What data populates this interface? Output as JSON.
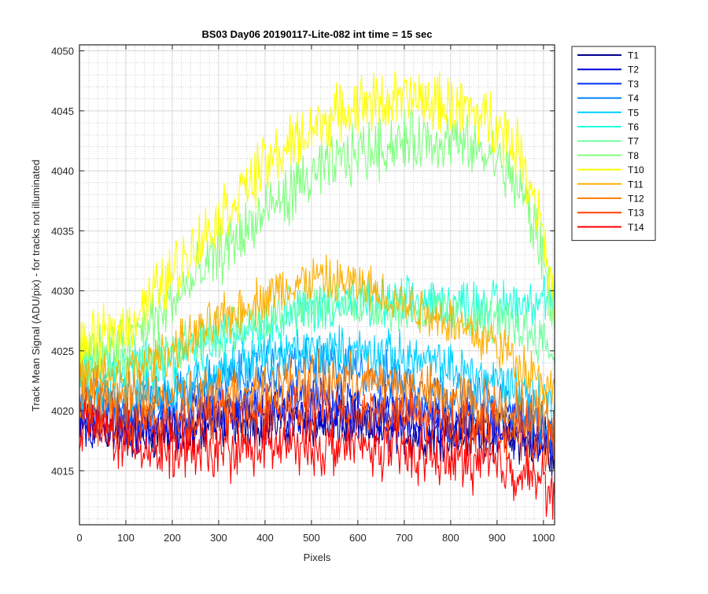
{
  "chart_data": {
    "type": "line",
    "title": "BS03 Day06 20190117-Lite-082 int time = 15 sec",
    "xlabel": "Pixels",
    "ylabel": "Track Mean Signal (ADU/pix) - for tracks not illuminated",
    "xlim": [
      0,
      1024
    ],
    "ylim": [
      4010.5,
      4050.5
    ],
    "x_ticks": [
      0,
      100,
      200,
      300,
      400,
      500,
      600,
      700,
      800,
      900,
      1000
    ],
    "y_ticks": [
      4015,
      4020,
      4025,
      4030,
      4035,
      4040,
      4045,
      4050
    ],
    "grid": "on",
    "minor_grid": "on",
    "legend_position": "outside-top-right",
    "x_sample": [
      0,
      100,
      200,
      300,
      400,
      500,
      600,
      700,
      800,
      900,
      950,
      1000,
      1024
    ],
    "series": [
      {
        "name": "T1",
        "color": "#00008F",
        "values": [
          4019.0,
          4018.0,
          4018.0,
          4019.0,
          4019.0,
          4019.0,
          4018.5,
          4018.0,
          4018.0,
          4018.0,
          4017.5,
          4017.0,
          4016.0
        ]
      },
      {
        "name": "T2",
        "color": "#0000DF",
        "values": [
          4019.0,
          4018.5,
          4018.5,
          4019.5,
          4019.5,
          4019.5,
          4019.5,
          4019.0,
          4018.5,
          4018.5,
          4018.0,
          4017.5,
          4017.0
        ]
      },
      {
        "name": "T3",
        "color": "#0030FF",
        "values": [
          4020.0,
          4019.5,
          4019.5,
          4020.5,
          4021.0,
          4021.0,
          4020.5,
          4020.0,
          4019.5,
          4019.5,
          4019.0,
          4018.5,
          4018.0
        ]
      },
      {
        "name": "T4",
        "color": "#0080FF",
        "values": [
          4021.0,
          4020.5,
          4021.0,
          4022.5,
          4023.5,
          4024.0,
          4023.5,
          4022.5,
          4021.5,
          4020.5,
          4020.0,
          4019.0,
          4018.0
        ]
      },
      {
        "name": "T5",
        "color": "#00CFFF",
        "values": [
          4022.0,
          4021.5,
          4022.0,
          4023.5,
          4024.5,
          4025.0,
          4025.0,
          4024.5,
          4023.5,
          4022.5,
          4022.0,
          4021.0,
          4020.0
        ]
      },
      {
        "name": "T6",
        "color": "#20FFDF",
        "values": [
          4023.5,
          4023.5,
          4024.5,
          4026.0,
          4027.5,
          4028.5,
          4029.0,
          4029.0,
          4029.0,
          4029.0,
          4029.0,
          4029.5,
          4029.0
        ]
      },
      {
        "name": "T7",
        "color": "#70FFA0",
        "values": [
          4024.0,
          4024.0,
          4025.0,
          4026.5,
          4028.0,
          4029.0,
          4029.0,
          4028.5,
          4028.0,
          4027.5,
          4027.0,
          4026.0,
          4024.5
        ]
      },
      {
        "name": "T8",
        "color": "#80FF80",
        "values": [
          4024.5,
          4025.5,
          4029.0,
          4033.0,
          4036.5,
          4039.5,
          4041.5,
          4042.5,
          4042.5,
          4041.0,
          4038.5,
          4033.0,
          4027.0
        ]
      },
      {
        "name": "T10",
        "color": "#FFFF00",
        "values": [
          4025.0,
          4027.0,
          4031.5,
          4036.0,
          4040.5,
          4043.5,
          4045.5,
          4046.0,
          4045.5,
          4044.0,
          4041.5,
          4035.5,
          4028.0
        ]
      },
      {
        "name": "T11",
        "color": "#FFB000",
        "values": [
          4022.5,
          4023.0,
          4025.0,
          4027.5,
          4029.5,
          4031.0,
          4030.5,
          4029.0,
          4027.5,
          4025.5,
          4024.0,
          4022.5,
          4021.0
        ]
      },
      {
        "name": "T12",
        "color": "#FF8000",
        "values": [
          4021.5,
          4021.0,
          4021.0,
          4021.5,
          4022.0,
          4022.5,
          4022.5,
          4022.0,
          4021.0,
          4020.5,
          4020.0,
          4019.5,
          4019.0
        ]
      },
      {
        "name": "T13",
        "color": "#FF4000",
        "values": [
          4020.0,
          4019.0,
          4019.0,
          4019.5,
          4020.0,
          4020.0,
          4020.0,
          4019.5,
          4019.0,
          4018.5,
          4018.0,
          4017.5,
          4017.0
        ]
      },
      {
        "name": "T14",
        "color": "#FF0000",
        "values": [
          4019.0,
          4017.5,
          4016.5,
          4016.5,
          4017.0,
          4017.0,
          4017.0,
          4016.5,
          4016.0,
          4015.5,
          4015.0,
          4014.0,
          4013.0
        ]
      }
    ]
  }
}
